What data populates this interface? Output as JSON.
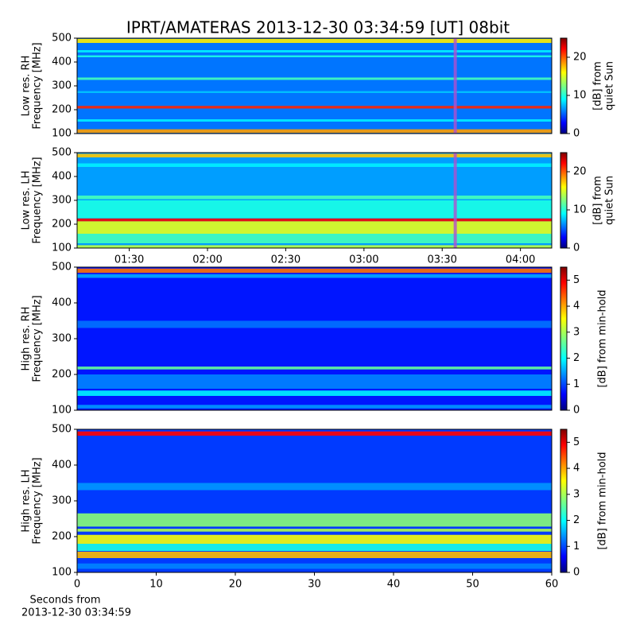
{
  "chart_data": [
    {
      "type": "heatmap",
      "title": "IPRT/AMATERAS 2013-12-30 03:34:59 [UT]   08bit",
      "colormap": "jet",
      "ylabel": [
        "Low res. RH",
        "Frequency [MHz]"
      ],
      "ylim": [
        100,
        500
      ],
      "yticks": [
        100,
        200,
        300,
        400,
        500
      ],
      "xlim": [
        70,
        252
      ],
      "cursor": 215,
      "colorbar": {
        "label": [
          "[dB] from",
          "quiet Sun"
        ],
        "lim": [
          0,
          25
        ],
        "ticks": [
          0,
          10,
          20
        ]
      },
      "background": 6,
      "bands": [
        [
          480,
          497,
          16
        ],
        [
          440,
          450,
          9
        ],
        [
          420,
          428,
          10
        ],
        [
          325,
          335,
          11
        ],
        [
          270,
          278,
          8
        ],
        [
          205,
          216,
          21
        ],
        [
          150,
          160,
          9
        ],
        [
          103,
          118,
          18
        ]
      ]
    },
    {
      "type": "heatmap",
      "colormap": "jet",
      "ylabel": [
        "Low res. LH",
        "Frequency [MHz]"
      ],
      "ylim": [
        100,
        500
      ],
      "yticks": [
        100,
        200,
        300,
        400,
        500
      ],
      "xlim": [
        70,
        252
      ],
      "cursor": 215,
      "xticks": [
        {
          "value": 90,
          "label": "01:30"
        },
        {
          "value": 120,
          "label": "02:00"
        },
        {
          "value": 150,
          "label": "02:30"
        },
        {
          "value": 180,
          "label": "03:00"
        },
        {
          "value": 210,
          "label": "03:30"
        },
        {
          "value": 240,
          "label": "04:00"
        }
      ],
      "colorbar": {
        "label": [
          "[dB] from",
          "quiet Sun"
        ],
        "lim": [
          0,
          25
        ],
        "ticks": [
          0,
          10,
          20
        ]
      },
      "background": 7,
      "bands": [
        [
          480,
          495,
          17
        ],
        [
          440,
          455,
          9
        ],
        [
          305,
          320,
          11
        ],
        [
          225,
          300,
          10
        ],
        [
          212,
          224,
          22
        ],
        [
          160,
          212,
          15
        ],
        [
          120,
          160,
          11
        ],
        [
          100,
          112,
          14
        ]
      ]
    },
    {
      "type": "heatmap",
      "colormap": "jet",
      "ylabel": [
        "High res. RH",
        "Frequency [MHz]"
      ],
      "ylim": [
        100,
        500
      ],
      "yticks": [
        100,
        200,
        300,
        400,
        500
      ],
      "xlim": [
        0,
        60
      ],
      "colorbar": {
        "label": [
          "[dB] from min-hold"
        ],
        "lim": [
          0,
          5.5
        ],
        "ticks": [
          0,
          1,
          2,
          3,
          4,
          5
        ]
      },
      "background": 0.8,
      "bands": [
        [
          484,
          496,
          4.2
        ],
        [
          470,
          480,
          1.6
        ],
        [
          330,
          350,
          1.3
        ],
        [
          214,
          222,
          2.6
        ],
        [
          160,
          200,
          1.4
        ],
        [
          140,
          155,
          2
        ],
        [
          105,
          115,
          1.5
        ]
      ]
    },
    {
      "type": "heatmap",
      "colormap": "jet",
      "ylabel": [
        "High res. LH",
        "Frequency [MHz]"
      ],
      "ylim": [
        100,
        500
      ],
      "yticks": [
        100,
        200,
        300,
        400,
        500
      ],
      "xlim": [
        0,
        60
      ],
      "xticks": [
        0,
        10,
        20,
        30,
        40,
        50,
        60
      ],
      "xlabel": [
        "Seconds from",
        "2013-12-30 03:34:59"
      ],
      "colorbar": {
        "label": [
          "[dB] from min-hold"
        ],
        "lim": [
          0,
          5.5
        ],
        "ticks": [
          0,
          1,
          2,
          3,
          4,
          5
        ]
      },
      "background": 1,
      "bands": [
        [
          482,
          494,
          4.8
        ],
        [
          330,
          350,
          1.5
        ],
        [
          228,
          265,
          2.8
        ],
        [
          214,
          222,
          3
        ],
        [
          180,
          205,
          3.4
        ],
        [
          160,
          180,
          2.2
        ],
        [
          140,
          158,
          3.8
        ],
        [
          110,
          125,
          1.4
        ]
      ]
    }
  ]
}
